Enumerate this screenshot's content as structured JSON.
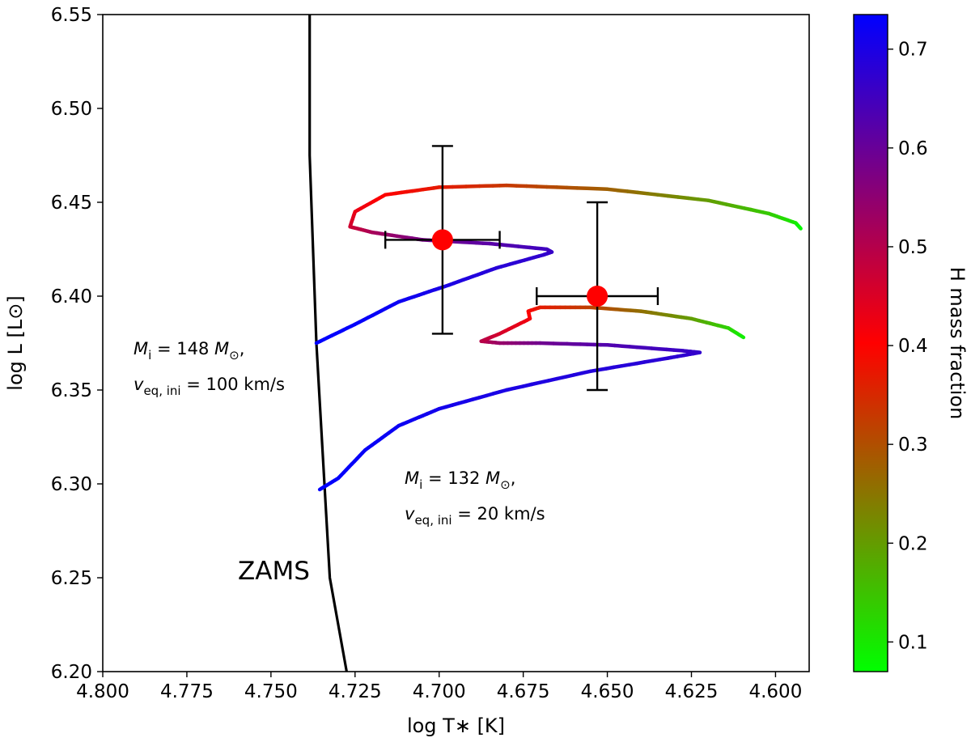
{
  "chart_data": {
    "type": "line",
    "xlabel": "log T∗ [K]",
    "ylabel": "log L [L⊙]",
    "xlim": [
      4.8,
      4.59
    ],
    "ylim": [
      6.2,
      6.55
    ],
    "x_inverted": true,
    "xticks": [
      "4.800",
      "4.775",
      "4.750",
      "4.725",
      "4.700",
      "4.675",
      "4.650",
      "4.625",
      "4.600"
    ],
    "yticks": [
      "6.20",
      "6.25",
      "6.30",
      "6.35",
      "6.40",
      "6.45",
      "6.50",
      "6.55"
    ],
    "grid": false,
    "colorbar": {
      "label": "H mass fraction",
      "range": [
        0.07,
        0.735
      ],
      "ticks": [
        "0.1",
        "0.2",
        "0.3",
        "0.4",
        "0.5",
        "0.6",
        "0.7"
      ],
      "colors": [
        "#00ff00",
        "#ff0000",
        "#0000ff"
      ]
    },
    "series": [
      {
        "name": "ZAMS",
        "color": "#000000",
        "points": [
          [
            4.7385,
            6.55
          ],
          [
            4.7385,
            6.475
          ],
          [
            4.7365,
            6.375
          ],
          [
            4.7325,
            6.25
          ],
          [
            4.7275,
            6.2
          ]
        ]
      },
      {
        "name": "",
        "annotation": [
          "M",
          "i",
          " = 148 ",
          "M",
          "⊙",
          ",",
          "v",
          "eq, ini",
          " = 100 km/s"
        ],
        "points": [
          [
            4.7365,
            6.375,
            0.735
          ],
          [
            4.725,
            6.385,
            0.73
          ],
          [
            4.712,
            6.397,
            0.72
          ],
          [
            4.697,
            6.406,
            0.7
          ],
          [
            4.683,
            6.415,
            0.685
          ],
          [
            4.669,
            6.422,
            0.672
          ],
          [
            4.6665,
            6.4235,
            0.665
          ],
          [
            4.668,
            6.425,
            0.655
          ],
          [
            4.685,
            6.428,
            0.62
          ],
          [
            4.705,
            6.43,
            0.58
          ],
          [
            4.72,
            6.434,
            0.52
          ],
          [
            4.7265,
            6.437,
            0.47
          ],
          [
            4.725,
            6.445,
            0.43
          ],
          [
            4.716,
            6.454,
            0.4
          ],
          [
            4.7,
            6.458,
            0.37
          ],
          [
            4.68,
            6.459,
            0.33
          ],
          [
            4.65,
            6.457,
            0.28
          ],
          [
            4.62,
            6.451,
            0.2
          ],
          [
            4.602,
            6.444,
            0.14
          ],
          [
            4.594,
            6.439,
            0.1
          ],
          [
            4.5925,
            6.436,
            0.075
          ]
        ]
      },
      {
        "name": "",
        "annotation": [
          "M",
          "i",
          " = 132 ",
          "M",
          "⊙",
          ",",
          "v",
          "eq, ini",
          " = 20 km/s"
        ],
        "points": [
          [
            4.7355,
            6.297,
            0.735
          ],
          [
            4.73,
            6.303,
            0.73
          ],
          [
            4.722,
            6.318,
            0.725
          ],
          [
            4.712,
            6.331,
            0.72
          ],
          [
            4.7,
            6.34,
            0.71
          ],
          [
            4.68,
            6.35,
            0.7
          ],
          [
            4.655,
            6.36,
            0.69
          ],
          [
            4.632,
            6.367,
            0.68
          ],
          [
            4.6225,
            6.37,
            0.67
          ],
          [
            4.628,
            6.371,
            0.66
          ],
          [
            4.65,
            6.374,
            0.63
          ],
          [
            4.67,
            6.375,
            0.59
          ],
          [
            4.682,
            6.375,
            0.54
          ],
          [
            4.6875,
            6.376,
            0.5
          ],
          [
            4.682,
            6.38,
            0.46
          ],
          [
            4.673,
            6.388,
            0.42
          ],
          [
            4.6735,
            6.392,
            0.4
          ],
          [
            4.67,
            6.394,
            0.37
          ],
          [
            4.655,
            6.394,
            0.32
          ],
          [
            4.64,
            6.392,
            0.26
          ],
          [
            4.625,
            6.388,
            0.2
          ],
          [
            4.614,
            6.383,
            0.13
          ],
          [
            4.6095,
            6.378,
            0.09
          ]
        ]
      }
    ],
    "observations": [
      {
        "x": 4.699,
        "y": 6.43,
        "xerr": 0.017,
        "yerr": 0.05,
        "color": "#ff0000"
      },
      {
        "x": 4.653,
        "y": 6.4,
        "xerr": 0.018,
        "yerr": 0.05,
        "color": "#ff0000"
      }
    ],
    "labels": {
      "zams": "ZAMS"
    }
  }
}
